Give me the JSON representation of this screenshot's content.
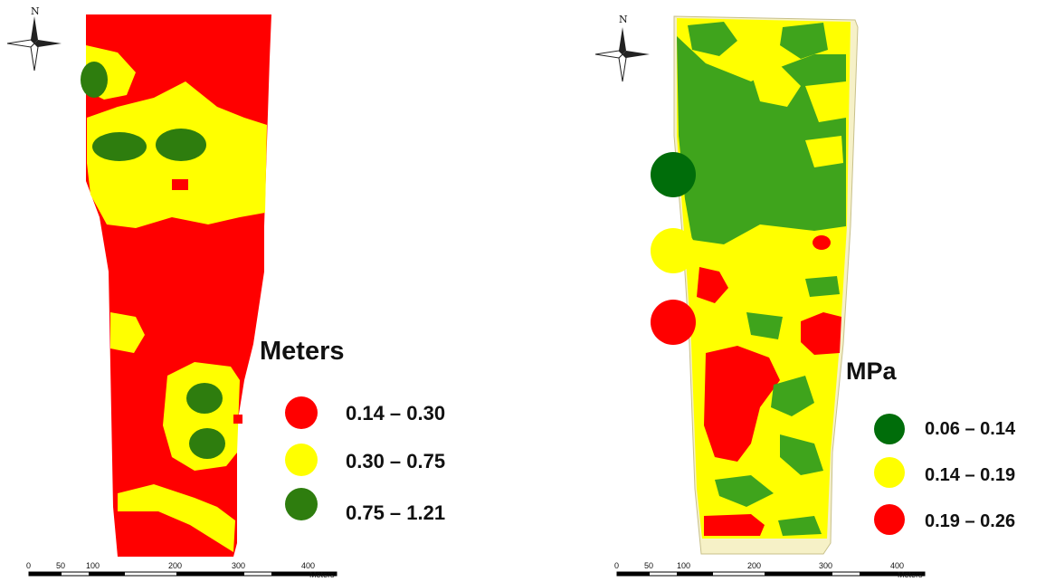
{
  "colors": {
    "red": "#ff0000",
    "yellow": "#ffff00",
    "green": "#2e7d0e",
    "green_right": "#3fa41c",
    "dot_green": "#006d0a",
    "cream": "#f6f1c7"
  },
  "left_map": {
    "north_label": "N",
    "legend_title": "Meters",
    "legend": [
      {
        "label": "0.14 – 0.30",
        "color": "#ff0000"
      },
      {
        "label": "0.30 – 0.75",
        "color": "#ffff00"
      },
      {
        "label": "0.75 – 1.21",
        "color": "#2e7d0e"
      }
    ],
    "scale": {
      "ticks": [
        "0",
        "50",
        "100",
        "200",
        "300",
        "400"
      ],
      "unit": "Meters"
    }
  },
  "right_map": {
    "north_label": "N",
    "legend_title": "MPa",
    "legend": [
      {
        "label": "0.06 – 0.14",
        "color": "#006d0a"
      },
      {
        "label": "0.14 – 0.19",
        "color": "#ffff00"
      },
      {
        "label": "0.19 – 0.26",
        "color": "#ff0000"
      }
    ],
    "side_dots": [
      "#006d0a",
      "#ffff00",
      "#ff0000"
    ],
    "scale": {
      "ticks": [
        "0",
        "50",
        "100",
        "200",
        "300",
        "400"
      ],
      "unit": "Meters"
    }
  }
}
